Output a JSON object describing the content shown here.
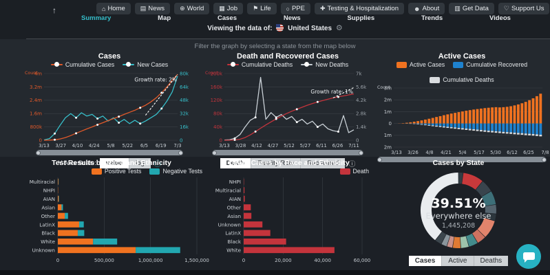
{
  "header": {
    "scroll_top_icon": "↑",
    "nav_buttons": [
      {
        "icon": "⌂",
        "label": "Home"
      },
      {
        "icon": "▤",
        "label": "News"
      },
      {
        "icon": "⊕",
        "label": "World"
      },
      {
        "icon": "▦",
        "label": "Job"
      },
      {
        "icon": "⚑",
        "label": "Life"
      },
      {
        "icon": "○",
        "label": "PPE"
      },
      {
        "icon": "✚",
        "label": "Testing & Hospitalization"
      },
      {
        "icon": "☻",
        "label": "About"
      },
      {
        "icon": "▥",
        "label": "Get Data"
      },
      {
        "icon": "♡",
        "label": "Support Us"
      }
    ],
    "tabs": [
      {
        "label": "Summary",
        "active": true
      },
      {
        "label": "Map"
      },
      {
        "label": "Cases"
      },
      {
        "label": "News"
      },
      {
        "label": "Supplies"
      },
      {
        "label": "Trends"
      },
      {
        "label": "Videos"
      }
    ],
    "viewing_label": "Viewing the data of:",
    "country": "United States",
    "gear_icon": "⚙",
    "filter_hint": "Filter the graph by selecting a state from the map below"
  },
  "controls": {
    "y_axis_scale_label": "Y-Axis Scale:",
    "scale_options": [
      "value",
      "log"
    ],
    "scale_active": "value",
    "death_tabs": [
      "Death",
      "Fatality Rate",
      "Recovered"
    ],
    "death_tab_active": "Death",
    "state_tabs": [
      "Cases",
      "Active",
      "Deaths"
    ],
    "state_tab_active": "Cases",
    "info_icon": "ⓘ"
  },
  "colors": {
    "accent_teal": "#35bdc9",
    "orange": "#f07220",
    "red": "#c4343c",
    "blue": "#1e82cf",
    "light_gray": "#d9dcdf"
  },
  "chart_data": [
    {
      "type": "line",
      "title": "Cases",
      "ylabel": "Count",
      "annotation": "Growth rate: 2%",
      "annotation_y": 0.12,
      "right_axis_color": "#37bfca",
      "yticks_left": [
        "4m",
        "3.2m",
        "2.4m",
        "1.6m",
        "800k",
        "0"
      ],
      "yticks_right": [
        "80k",
        "64k",
        "48k",
        "32k",
        "16k",
        "0"
      ],
      "ylim_left": [
        0,
        4
      ],
      "ylim_right": [
        0,
        80
      ],
      "xticks": [
        "3/13",
        "3/27",
        "4/10",
        "4/24",
        "5/8",
        "5/22",
        "6/5",
        "6/19",
        "7/3"
      ],
      "series": [
        {
          "name": "Cumulative Cases",
          "color": "#e0592a",
          "axis": "left",
          "values": [
            0,
            0.01,
            0.03,
            0.08,
            0.16,
            0.28,
            0.42,
            0.55,
            0.68,
            0.8,
            0.93,
            1.05,
            1.18,
            1.3,
            1.42,
            1.55,
            1.68,
            1.8,
            1.95,
            2.1,
            2.3,
            2.55,
            2.85,
            3.2,
            3.6,
            3.95
          ]
        },
        {
          "name": "New Cases",
          "color": "#37bfca",
          "axis": "right",
          "values": [
            0.4,
            2,
            8,
            18,
            27,
            32,
            27,
            33,
            29,
            31,
            26,
            29,
            23,
            27,
            21,
            25,
            20,
            24,
            20,
            23,
            27,
            31,
            38,
            47,
            58,
            77
          ]
        }
      ],
      "trend": {
        "axis": "right",
        "x0": 0.76,
        "v0": 30,
        "x1": 1.0,
        "v1": 79
      }
    },
    {
      "type": "line",
      "title": "Death and Recovered Cases",
      "ylabel": "Count",
      "annotation": "Growth rate: 1%",
      "annotation_y": 0.3,
      "right_axis_color": "#9aa1a8",
      "yticks_left": [
        "200k",
        "160k",
        "120k",
        "80k",
        "40k",
        "0"
      ],
      "yticks_right": [
        "7k",
        "5.6k",
        "4.2k",
        "2.8k",
        "1.4k",
        "0"
      ],
      "ylim_left": [
        0,
        200
      ],
      "ylim_right": [
        0,
        7
      ],
      "xticks": [
        "3/13",
        "3/28",
        "4/12",
        "4/27",
        "5/12",
        "5/27",
        "6/11",
        "6/26",
        "7/11"
      ],
      "series": [
        {
          "name": "Cumulative Deaths",
          "color": "#c4343c",
          "axis": "left",
          "values": [
            0,
            0.2,
            1,
            3,
            8,
            16,
            26,
            36,
            46,
            55,
            64,
            72,
            80,
            87,
            93,
            99,
            105,
            110,
            115,
            119,
            123,
            127,
            130,
            133,
            136,
            139
          ]
        },
        {
          "name": "New Deaths",
          "color": "#c9d0d6",
          "axis": "right",
          "values": [
            0.02,
            0.05,
            0.2,
            0.6,
            1.4,
            2.1,
            2.4,
            6.6,
            2.2,
            2.9,
            2.4,
            2.7,
            2.2,
            2.5,
            1.9,
            2.2,
            1.7,
            2.0,
            1.4,
            1.7,
            1.2,
            1.0,
            0.9,
            2.6,
            0.8,
            1.1
          ]
        }
      ],
      "trend": {
        "axis": "left",
        "x0": 0.84,
        "v0": 127,
        "x1": 1.0,
        "v1": 158
      }
    },
    {
      "type": "diverging-bar",
      "title": "Active Cases",
      "ylabel": "Count",
      "yticks": [
        "3m",
        "2m",
        "1m",
        "0",
        "1m",
        "2m"
      ],
      "ylim": [
        -2,
        3
      ],
      "xticks": [
        "3/13",
        "3/26",
        "4/8",
        "4/21",
        "5/4",
        "5/17",
        "5/30",
        "6/12",
        "6/25",
        "7/8"
      ],
      "series": [
        {
          "name": "Active Cases",
          "color": "#f07220",
          "values": [
            0,
            0.01,
            0.03,
            0.06,
            0.1,
            0.15,
            0.2,
            0.26,
            0.33,
            0.4,
            0.47,
            0.55,
            0.62,
            0.7,
            0.77,
            0.84,
            0.9,
            0.96,
            1.02,
            1.08,
            1.13,
            1.18,
            1.22,
            1.26,
            1.3,
            1.33,
            1.36,
            1.38,
            1.36,
            1.38,
            1.41,
            1.46,
            1.53,
            1.61,
            1.71,
            1.83,
            1.97,
            2.13,
            2.31,
            2.52
          ]
        },
        {
          "name": "Cumulative Recovered",
          "color": "#1e82cf",
          "values": [
            0,
            0,
            0,
            0.01,
            0.02,
            0.03,
            0.05,
            0.07,
            0.1,
            0.13,
            0.16,
            0.19,
            0.22,
            0.25,
            0.28,
            0.31,
            0.34,
            0.37,
            0.4,
            0.43,
            0.46,
            0.49,
            0.52,
            0.55,
            0.58,
            0.61,
            0.63,
            0.66,
            0.68,
            0.71,
            0.73,
            0.75,
            0.78,
            0.8,
            0.82,
            0.85,
            0.87,
            0.89,
            0.92,
            0.95
          ]
        },
        {
          "name": "Cumulative Deaths",
          "color": "#d9dcdf",
          "values": [
            0,
            0,
            0,
            0.005,
            0.01,
            0.02,
            0.03,
            0.04,
            0.05,
            0.06,
            0.07,
            0.078,
            0.085,
            0.09,
            0.095,
            0.1,
            0.104,
            0.108,
            0.111,
            0.114,
            0.117,
            0.119,
            0.121,
            0.123,
            0.125,
            0.127,
            0.128,
            0.129,
            0.13,
            0.131,
            0.132,
            0.133,
            0.134,
            0.135,
            0.136,
            0.137,
            0.138,
            0.139,
            0.14,
            0.141
          ]
        }
      ]
    },
    {
      "type": "stacked-hbar",
      "title": "Test Results by Race and Ethnicity",
      "categories": [
        "Multiracial",
        "NHPI",
        "AIAN",
        "Asian",
        "Other",
        "LatinX",
        "Black",
        "White",
        "Unknown"
      ],
      "xticks": [
        "0",
        "500,000",
        "1,000,000",
        "1,500,000"
      ],
      "xlim": [
        0,
        1500000
      ],
      "series": [
        {
          "name": "Positive Tests",
          "color": "#f07220",
          "values": [
            6000,
            2500,
            9000,
            40000,
            75000,
            230000,
            215000,
            380000,
            840000
          ]
        },
        {
          "name": "Negative Tests",
          "color": "#22a7b0",
          "values": [
            2500,
            1200,
            4000,
            15000,
            35000,
            50000,
            70000,
            260000,
            480000
          ]
        }
      ]
    },
    {
      "type": "hbar",
      "title": "Death Cases by Race and Ethnicity",
      "categories": [
        "NHPI",
        "Multiracial",
        "AIAN",
        "Other",
        "Asian",
        "Unknown",
        "LatinX",
        "Black",
        "White"
      ],
      "xticks": [
        "0",
        "20,000",
        "40,000",
        "60,000"
      ],
      "xlim": [
        0,
        60000
      ],
      "series": [
        {
          "name": "Death",
          "color": "#c4343c",
          "values": [
            150,
            400,
            550,
            3600,
            3900,
            9500,
            13500,
            21500,
            46000
          ]
        }
      ]
    },
    {
      "type": "donut",
      "title": "Cases by State",
      "center": {
        "pct": "39.51%",
        "label": "Everywhere else",
        "value": "1,445,208"
      },
      "segments": [
        {
          "pct": 2,
          "color": "#323d44"
        },
        {
          "pct": 9,
          "color": "#c8393b"
        },
        {
          "pct": 5.5,
          "color": "#39444d"
        },
        {
          "pct": 6,
          "color": "#3d6f78"
        },
        {
          "pct": 4,
          "color": "#55646e"
        },
        {
          "pct": 3,
          "color": "#2c363d"
        },
        {
          "pct": 8,
          "color": "#e2846c"
        },
        {
          "pct": 4,
          "color": "#cd7260"
        },
        {
          "pct": 4,
          "color": "#438b8c"
        },
        {
          "pct": 3.5,
          "color": "#9dc3ab"
        },
        {
          "pct": 3.5,
          "color": "#df7a33"
        },
        {
          "pct": 2.5,
          "color": "#c99089"
        },
        {
          "pct": 2.5,
          "color": "#8a959c"
        },
        {
          "pct": 2.99,
          "color": "#3c464d"
        },
        {
          "pct": 39.51,
          "color": "#e9ecef",
          "label": "everywhere else"
        }
      ]
    }
  ]
}
